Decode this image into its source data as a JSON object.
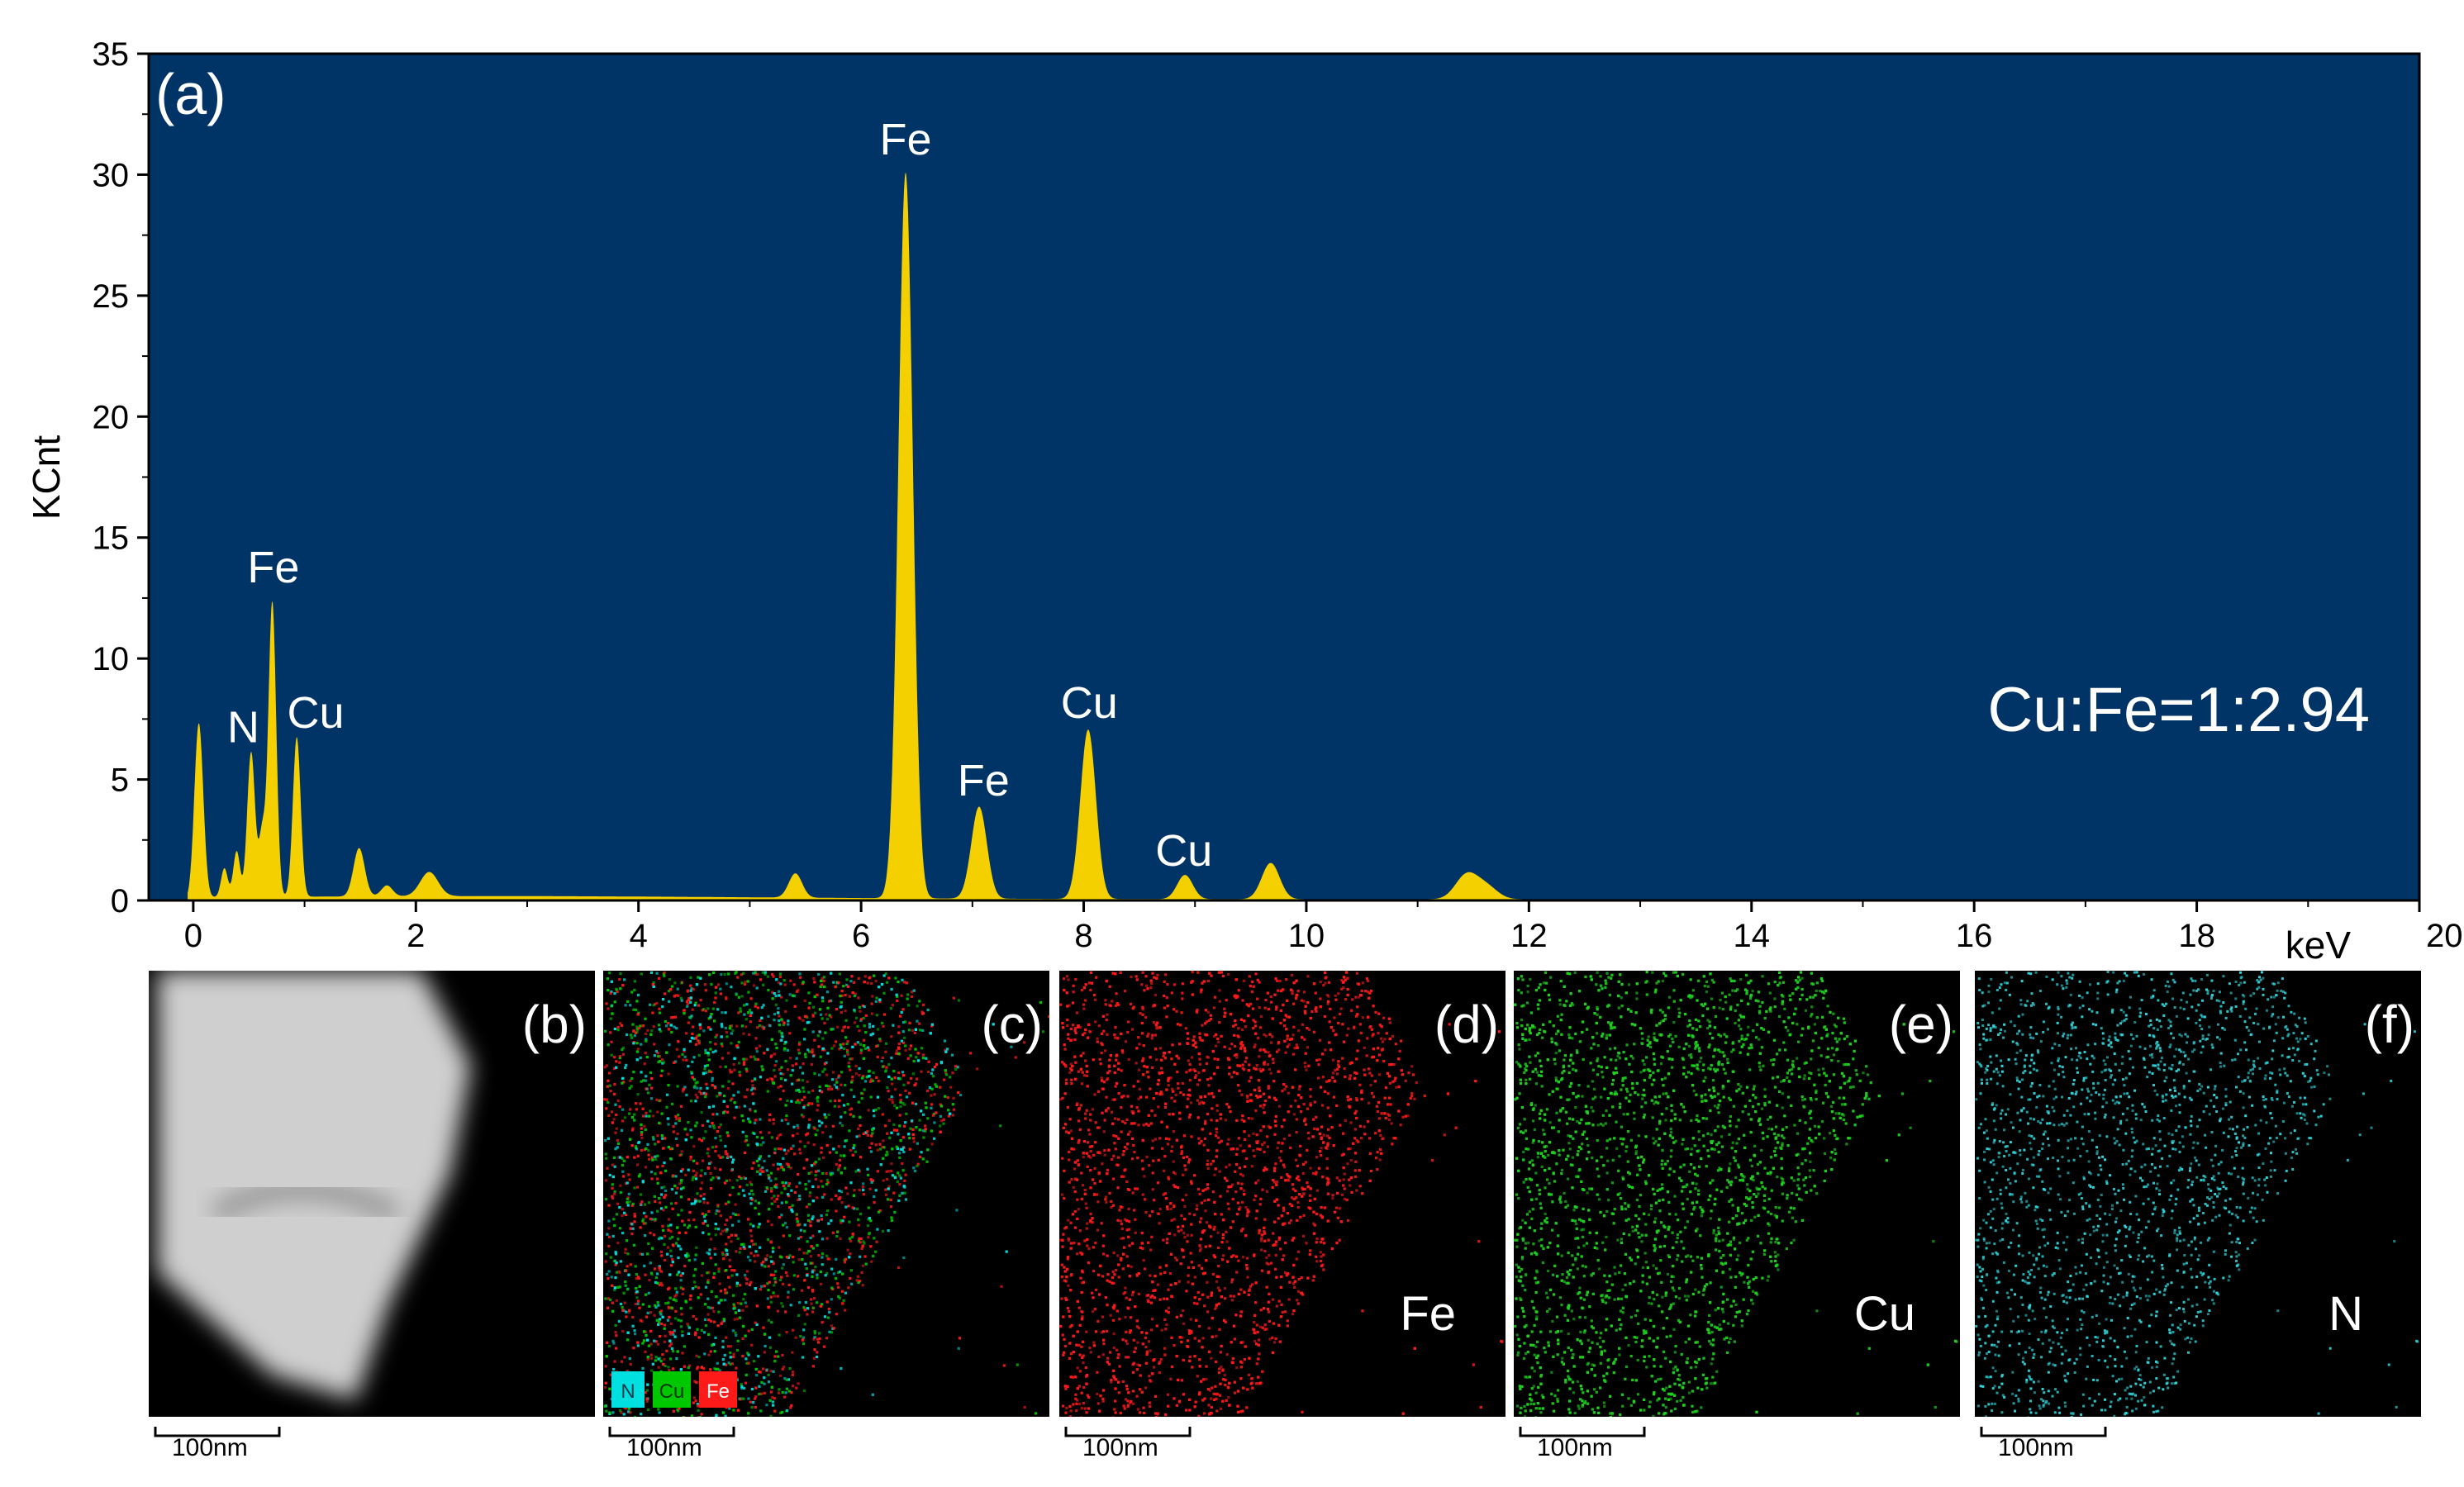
{
  "chart_data": {
    "type": "area",
    "panel_label": "(a)",
    "ylabel": "KCnt",
    "xlabel": "keV",
    "xlim": [
      -0.4,
      20
    ],
    "ylim": [
      0,
      35
    ],
    "x_ticks": [
      0,
      2,
      4,
      6,
      8,
      10,
      12,
      14,
      16,
      18,
      20
    ],
    "y_ticks": [
      0,
      5,
      10,
      15,
      20,
      25,
      30,
      35
    ],
    "background_color": "#003366",
    "fill_color": "#f5d000",
    "annotation": "Cu:Fe=1:2.94",
    "peaks": [
      {
        "x": 0.05,
        "y": 7.2,
        "width": 0.04
      },
      {
        "x": 0.28,
        "y": 1.2,
        "width": 0.03
      },
      {
        "x": 0.39,
        "y": 1.9,
        "width": 0.03
      },
      {
        "x": 0.52,
        "y": 6.0,
        "width": 0.035
      },
      {
        "x": 0.62,
        "y": 2.6,
        "width": 0.03
      },
      {
        "x": 0.71,
        "y": 12.2,
        "width": 0.035
      },
      {
        "x": 0.93,
        "y": 6.6,
        "width": 0.035
      },
      {
        "x": 1.49,
        "y": 2.0,
        "width": 0.05
      },
      {
        "x": 1.74,
        "y": 0.45,
        "width": 0.05
      },
      {
        "x": 2.12,
        "y": 1.0,
        "width": 0.08
      },
      {
        "x": 5.41,
        "y": 1.0,
        "width": 0.06
      },
      {
        "x": 6.4,
        "y": 30.0,
        "width": 0.065
      },
      {
        "x": 7.06,
        "y": 3.8,
        "width": 0.07
      },
      {
        "x": 8.04,
        "y": 7.0,
        "width": 0.07
      },
      {
        "x": 8.91,
        "y": 1.0,
        "width": 0.07
      },
      {
        "x": 9.68,
        "y": 1.5,
        "width": 0.08
      },
      {
        "x": 11.44,
        "y": 1.0,
        "width": 0.1
      },
      {
        "x": 11.62,
        "y": 0.5,
        "width": 0.1
      }
    ],
    "peak_labels": [
      {
        "text": "N",
        "x": 0.45,
        "y": 6.2
      },
      {
        "text": "Fe",
        "x": 0.72,
        "y": 12.8
      },
      {
        "text": "Cu",
        "x": 1.1,
        "y": 6.8
      },
      {
        "text": "Fe",
        "x": 6.4,
        "y": 30.5
      },
      {
        "text": "Fe",
        "x": 7.1,
        "y": 4.0
      },
      {
        "text": "Cu",
        "x": 8.05,
        "y": 7.2
      },
      {
        "text": "Cu",
        "x": 8.9,
        "y": 1.1
      }
    ]
  },
  "maps": [
    {
      "label": "(b)",
      "element": "",
      "scale_bar": "100nm",
      "kind": "haadf"
    },
    {
      "label": "(c)",
      "element": "",
      "scale_bar": "100nm",
      "kind": "overlay",
      "legend": [
        {
          "text": "N",
          "color": "#00e0e0"
        },
        {
          "text": "Cu",
          "color": "#00c800"
        },
        {
          "text": "Fe",
          "color": "#ff1a1a"
        }
      ]
    },
    {
      "label": "(d)",
      "element": "Fe",
      "scale_bar": "100nm",
      "kind": "fe",
      "color": "#ff1a1a"
    },
    {
      "label": "(e)",
      "element": "Cu",
      "scale_bar": "100nm",
      "kind": "cu",
      "color": "#1ed21e"
    },
    {
      "label": "(f)",
      "element": "N",
      "scale_bar": "100nm",
      "kind": "n",
      "color": "#2fd6dc"
    }
  ]
}
